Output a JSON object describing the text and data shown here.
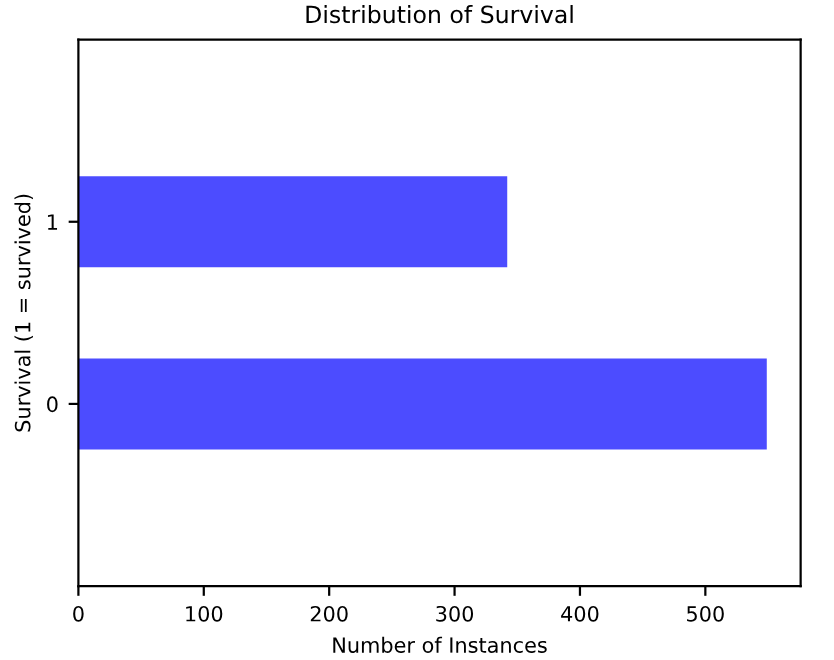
{
  "chart_data": {
    "type": "bar",
    "orientation": "horizontal",
    "title": "Distribution of Survival",
    "xlabel": "Number of Instances",
    "ylabel": "Survival (1 = survived)",
    "categories": [
      "1",
      "0"
    ],
    "values": [
      342,
      549
    ],
    "color": "#4c4cff",
    "xlim": [
      0,
      576
    ],
    "xticks": [
      0,
      100,
      200,
      300,
      400,
      500
    ],
    "grid": false,
    "legend": false
  }
}
